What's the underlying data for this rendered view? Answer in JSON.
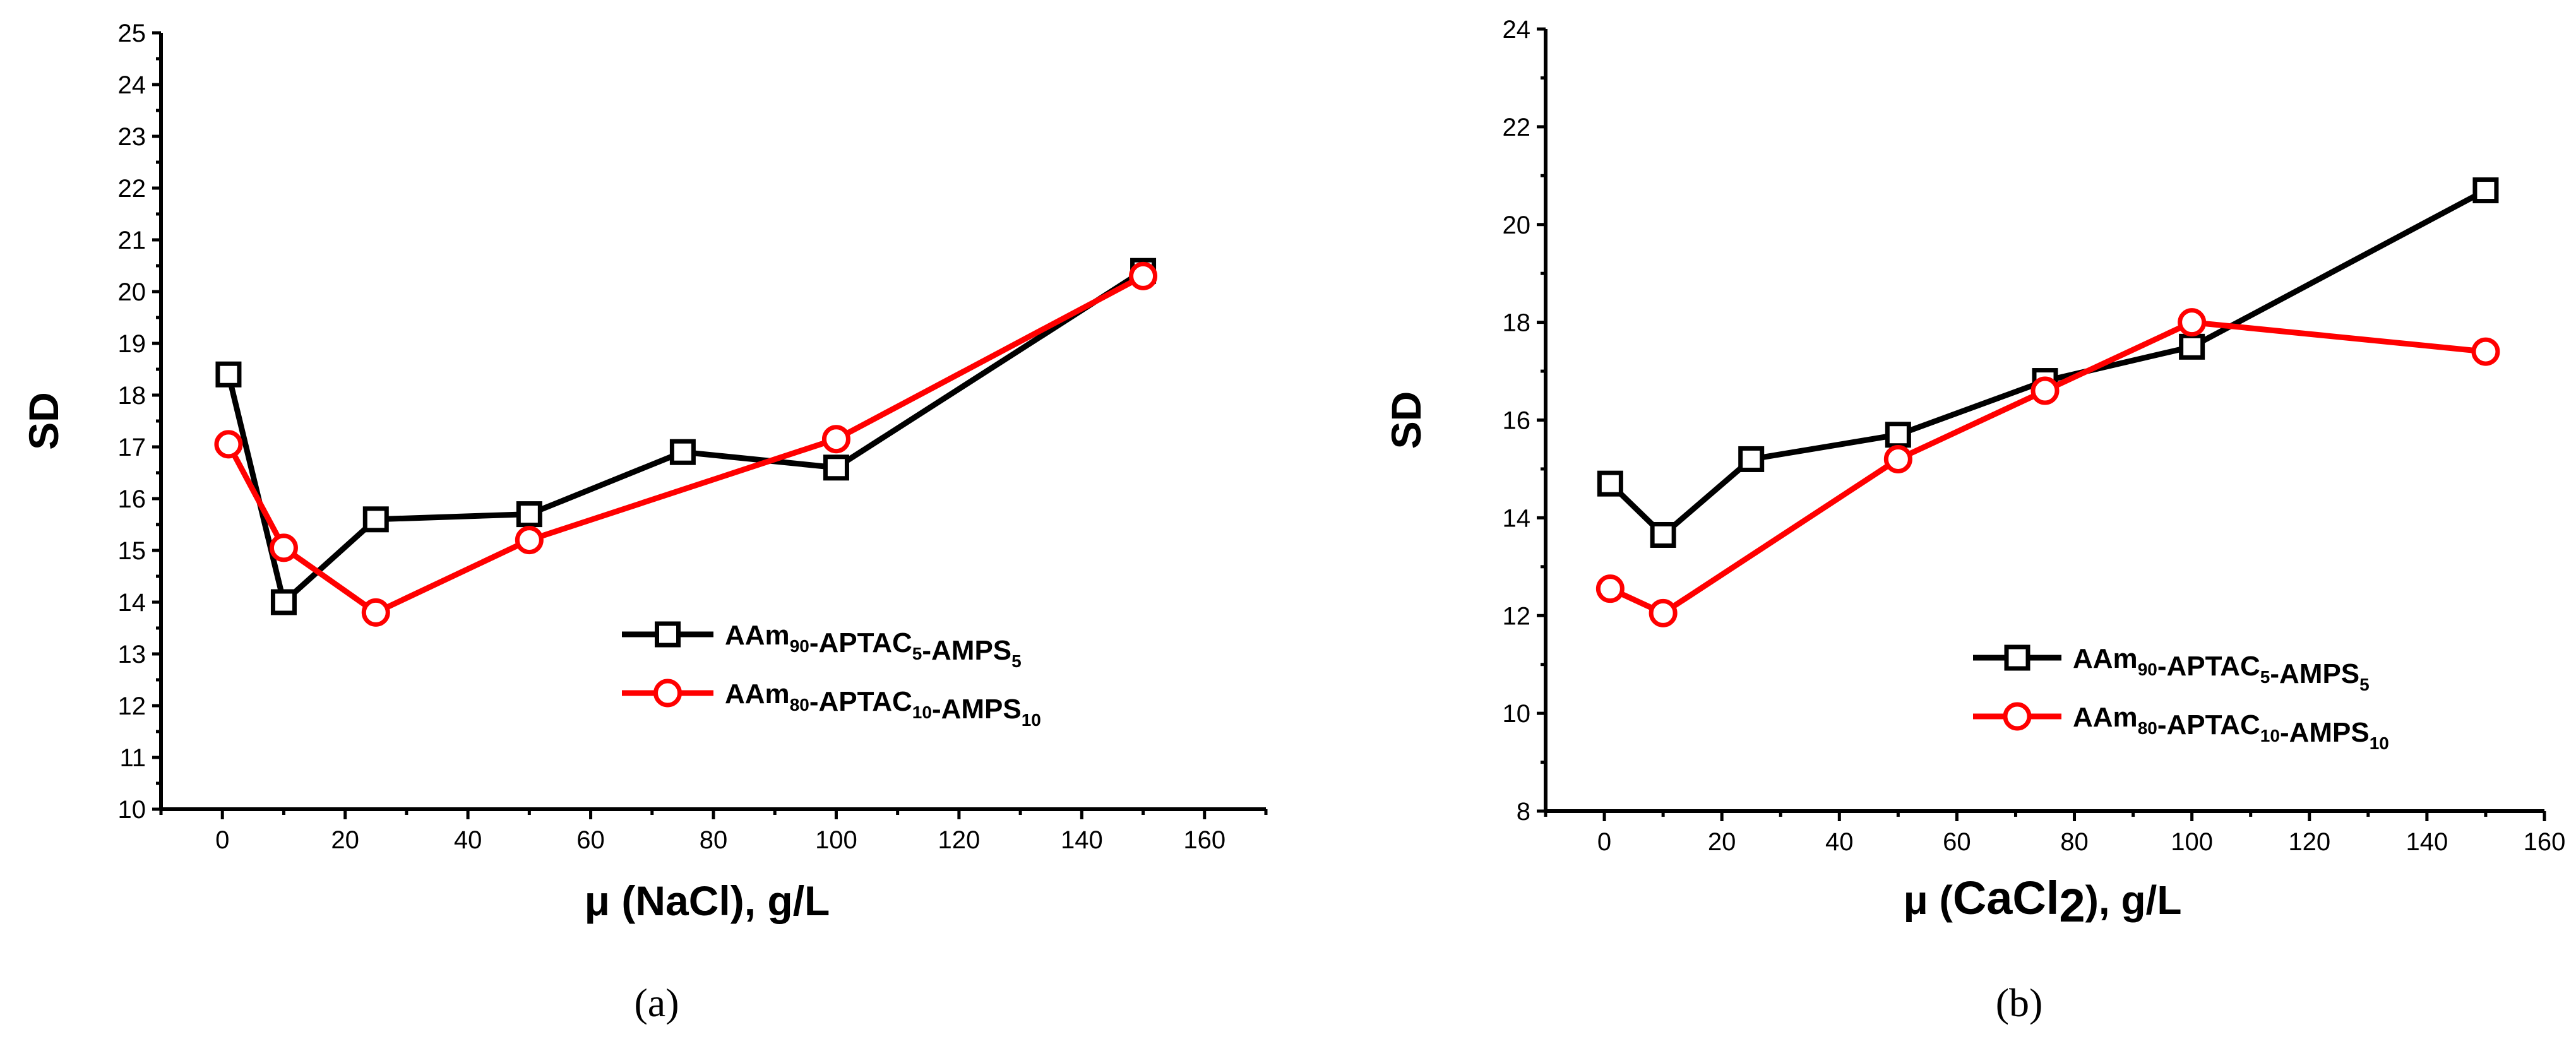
{
  "chart_data": [
    {
      "type": "line",
      "panel_label": "(a)",
      "xlabel": "μ (NaCl), g/L",
      "ylabel": "SD",
      "xlim": [
        -10,
        170
      ],
      "ylim": [
        10,
        25
      ],
      "xticks": [
        0,
        20,
        40,
        60,
        80,
        100,
        120,
        140,
        160
      ],
      "yticks": [
        10,
        11,
        12,
        13,
        14,
        15,
        16,
        17,
        18,
        19,
        20,
        21,
        22,
        23,
        24,
        25
      ],
      "legend_position": "center-right",
      "series": [
        {
          "name": "AAm90-APTAC5-AMPS5",
          "label_parts": [
            [
              "AAm",
              "90"
            ],
            [
              "-APTAC",
              "5"
            ],
            [
              "-AMPS",
              "5"
            ]
          ],
          "color": "#000000",
          "marker": "square",
          "x": [
            1,
            10,
            25,
            50,
            75,
            100,
            150
          ],
          "y": [
            18.4,
            14.0,
            15.6,
            15.7,
            16.9,
            16.6,
            20.4
          ]
        },
        {
          "name": "AAm80-APTAC10-AMPS10",
          "label_parts": [
            [
              "AAm",
              "80"
            ],
            [
              "-APTAC",
              "10"
            ],
            [
              "-AMPS",
              "10"
            ]
          ],
          "color": "#ff0000",
          "marker": "circle",
          "x": [
            1,
            10,
            25,
            50,
            100,
            150
          ],
          "y": [
            17.05,
            15.05,
            13.8,
            15.2,
            17.15,
            20.3
          ]
        }
      ]
    },
    {
      "type": "line",
      "panel_label": "(b)",
      "xlabel_parts": [
        "μ (",
        "CaCl",
        "2",
        "), g/L"
      ],
      "ylabel": "SD",
      "xlim": [
        -10,
        160
      ],
      "ylim": [
        8,
        24
      ],
      "xticks": [
        0,
        20,
        40,
        60,
        80,
        100,
        120,
        140,
        160
      ],
      "yticks": [
        8,
        10,
        12,
        14,
        16,
        18,
        20,
        22,
        24
      ],
      "legend_position": "lower-right",
      "series": [
        {
          "name": "AAm90-APTAC5-AMPS5",
          "label_parts": [
            [
              "AAm",
              "90"
            ],
            [
              "-APTAC",
              "5"
            ],
            [
              "-AMPS",
              "5"
            ]
          ],
          "color": "#000000",
          "marker": "square",
          "x": [
            1,
            10,
            25,
            50,
            75,
            100,
            150
          ],
          "y": [
            14.7,
            13.65,
            15.2,
            15.7,
            16.8,
            17.5,
            20.7
          ]
        },
        {
          "name": "AAm80-APTAC10-AMPS10",
          "label_parts": [
            [
              "AAm",
              "80"
            ],
            [
              "-APTAC",
              "10"
            ],
            [
              "-AMPS",
              "10"
            ]
          ],
          "color": "#ff0000",
          "marker": "circle",
          "x": [
            1,
            10,
            50,
            75,
            100,
            150
          ],
          "y": [
            12.55,
            12.05,
            15.2,
            16.6,
            18.0,
            17.4
          ]
        }
      ]
    }
  ]
}
